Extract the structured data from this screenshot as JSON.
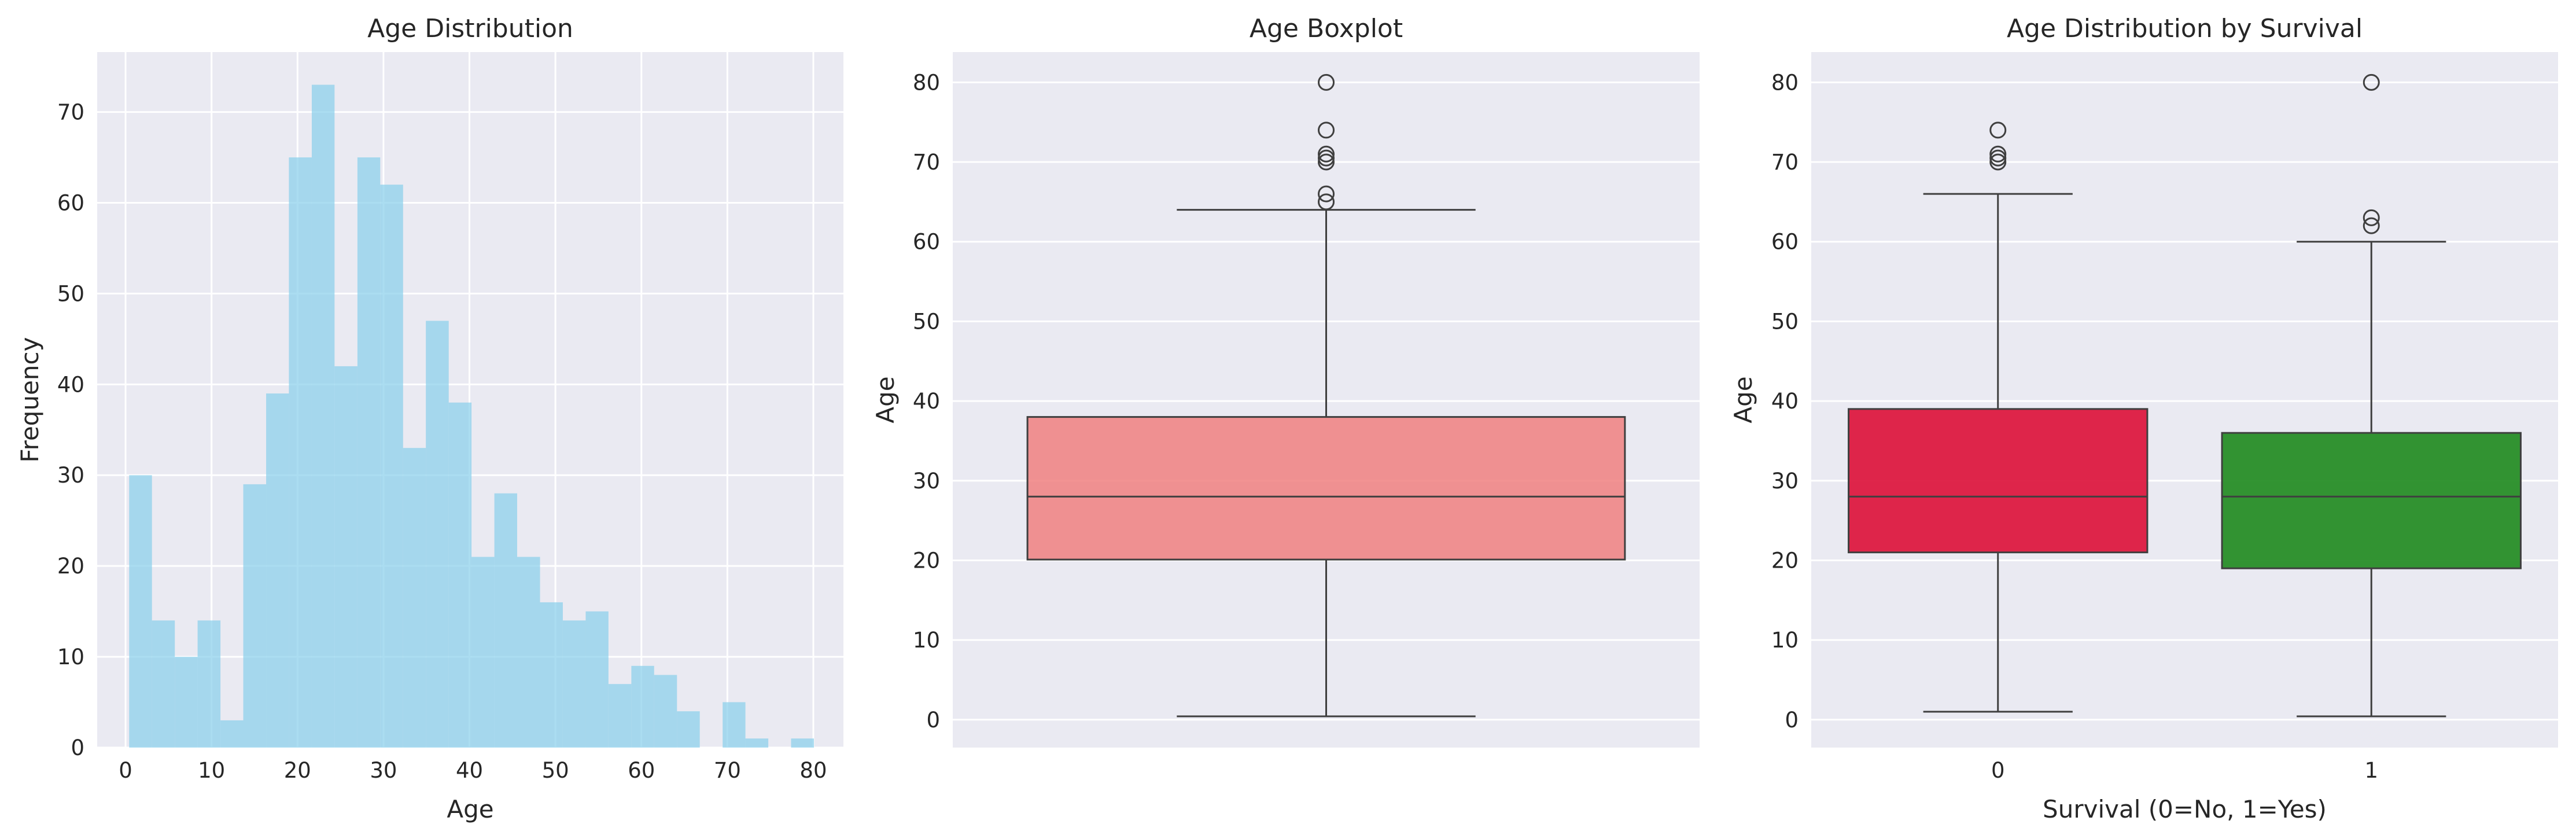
{
  "chart_data": [
    {
      "type": "bar",
      "title": "Age Distribution",
      "xlabel": "Age",
      "ylabel": "Frequency",
      "xlim": [
        -3.3,
        83.5
      ],
      "ylim": [
        0,
        76.6
      ],
      "xticks": [
        0,
        10,
        20,
        30,
        40,
        50,
        60,
        70,
        80
      ],
      "yticks": [
        0,
        10,
        20,
        30,
        40,
        50,
        60,
        70
      ],
      "grid": true,
      "bin_edges": [
        0.42,
        3.07,
        5.73,
        8.38,
        11.04,
        13.69,
        16.35,
        19.0,
        21.66,
        24.31,
        26.97,
        29.62,
        32.28,
        34.93,
        37.59,
        40.24,
        42.9,
        45.55,
        48.21,
        50.86,
        53.52,
        56.17,
        58.83,
        61.48,
        64.14,
        66.79,
        69.45,
        72.1,
        74.76,
        77.41,
        80.07
      ],
      "values": [
        30,
        14,
        10,
        14,
        3,
        29,
        39,
        65,
        73,
        42,
        65,
        62,
        33,
        47,
        38,
        21,
        28,
        21,
        16,
        14,
        15,
        7,
        9,
        8,
        4,
        0,
        5,
        1,
        0,
        1
      ],
      "color": "#87CEEB"
    },
    {
      "type": "boxplot",
      "title": "Age Boxplot",
      "xlabel": "",
      "ylabel": "Age",
      "ylim": [
        -3.5,
        83.8
      ],
      "yticks": [
        0,
        10,
        20,
        30,
        40,
        50,
        60,
        70,
        80
      ],
      "grid": true,
      "boxes": [
        {
          "category": "",
          "whisker_low": 0.42,
          "q1": 20.1,
          "median": 28,
          "q3": 38,
          "whisker_high": 64,
          "outliers": [
            65,
            66,
            70,
            70.5,
            71,
            74,
            80
          ],
          "color": "#F08080"
        }
      ]
    },
    {
      "type": "boxplot",
      "title": "Age Distribution by Survival",
      "xlabel": "Survival (0=No, 1=Yes)",
      "ylabel": "Age",
      "ylim": [
        -3.5,
        83.8
      ],
      "yticks": [
        0,
        10,
        20,
        30,
        40,
        50,
        60,
        70,
        80
      ],
      "grid": true,
      "boxes": [
        {
          "category": "0",
          "whisker_low": 1,
          "q1": 21,
          "median": 28,
          "q3": 39,
          "whisker_high": 66,
          "outliers": [
            70,
            70.5,
            71,
            74
          ],
          "color": "#DC143C"
        },
        {
          "category": "1",
          "whisker_low": 0.42,
          "q1": 19,
          "median": 28,
          "q3": 36,
          "whisker_high": 60,
          "outliers": [
            62,
            63,
            80
          ],
          "color": "#228B22"
        }
      ]
    }
  ]
}
